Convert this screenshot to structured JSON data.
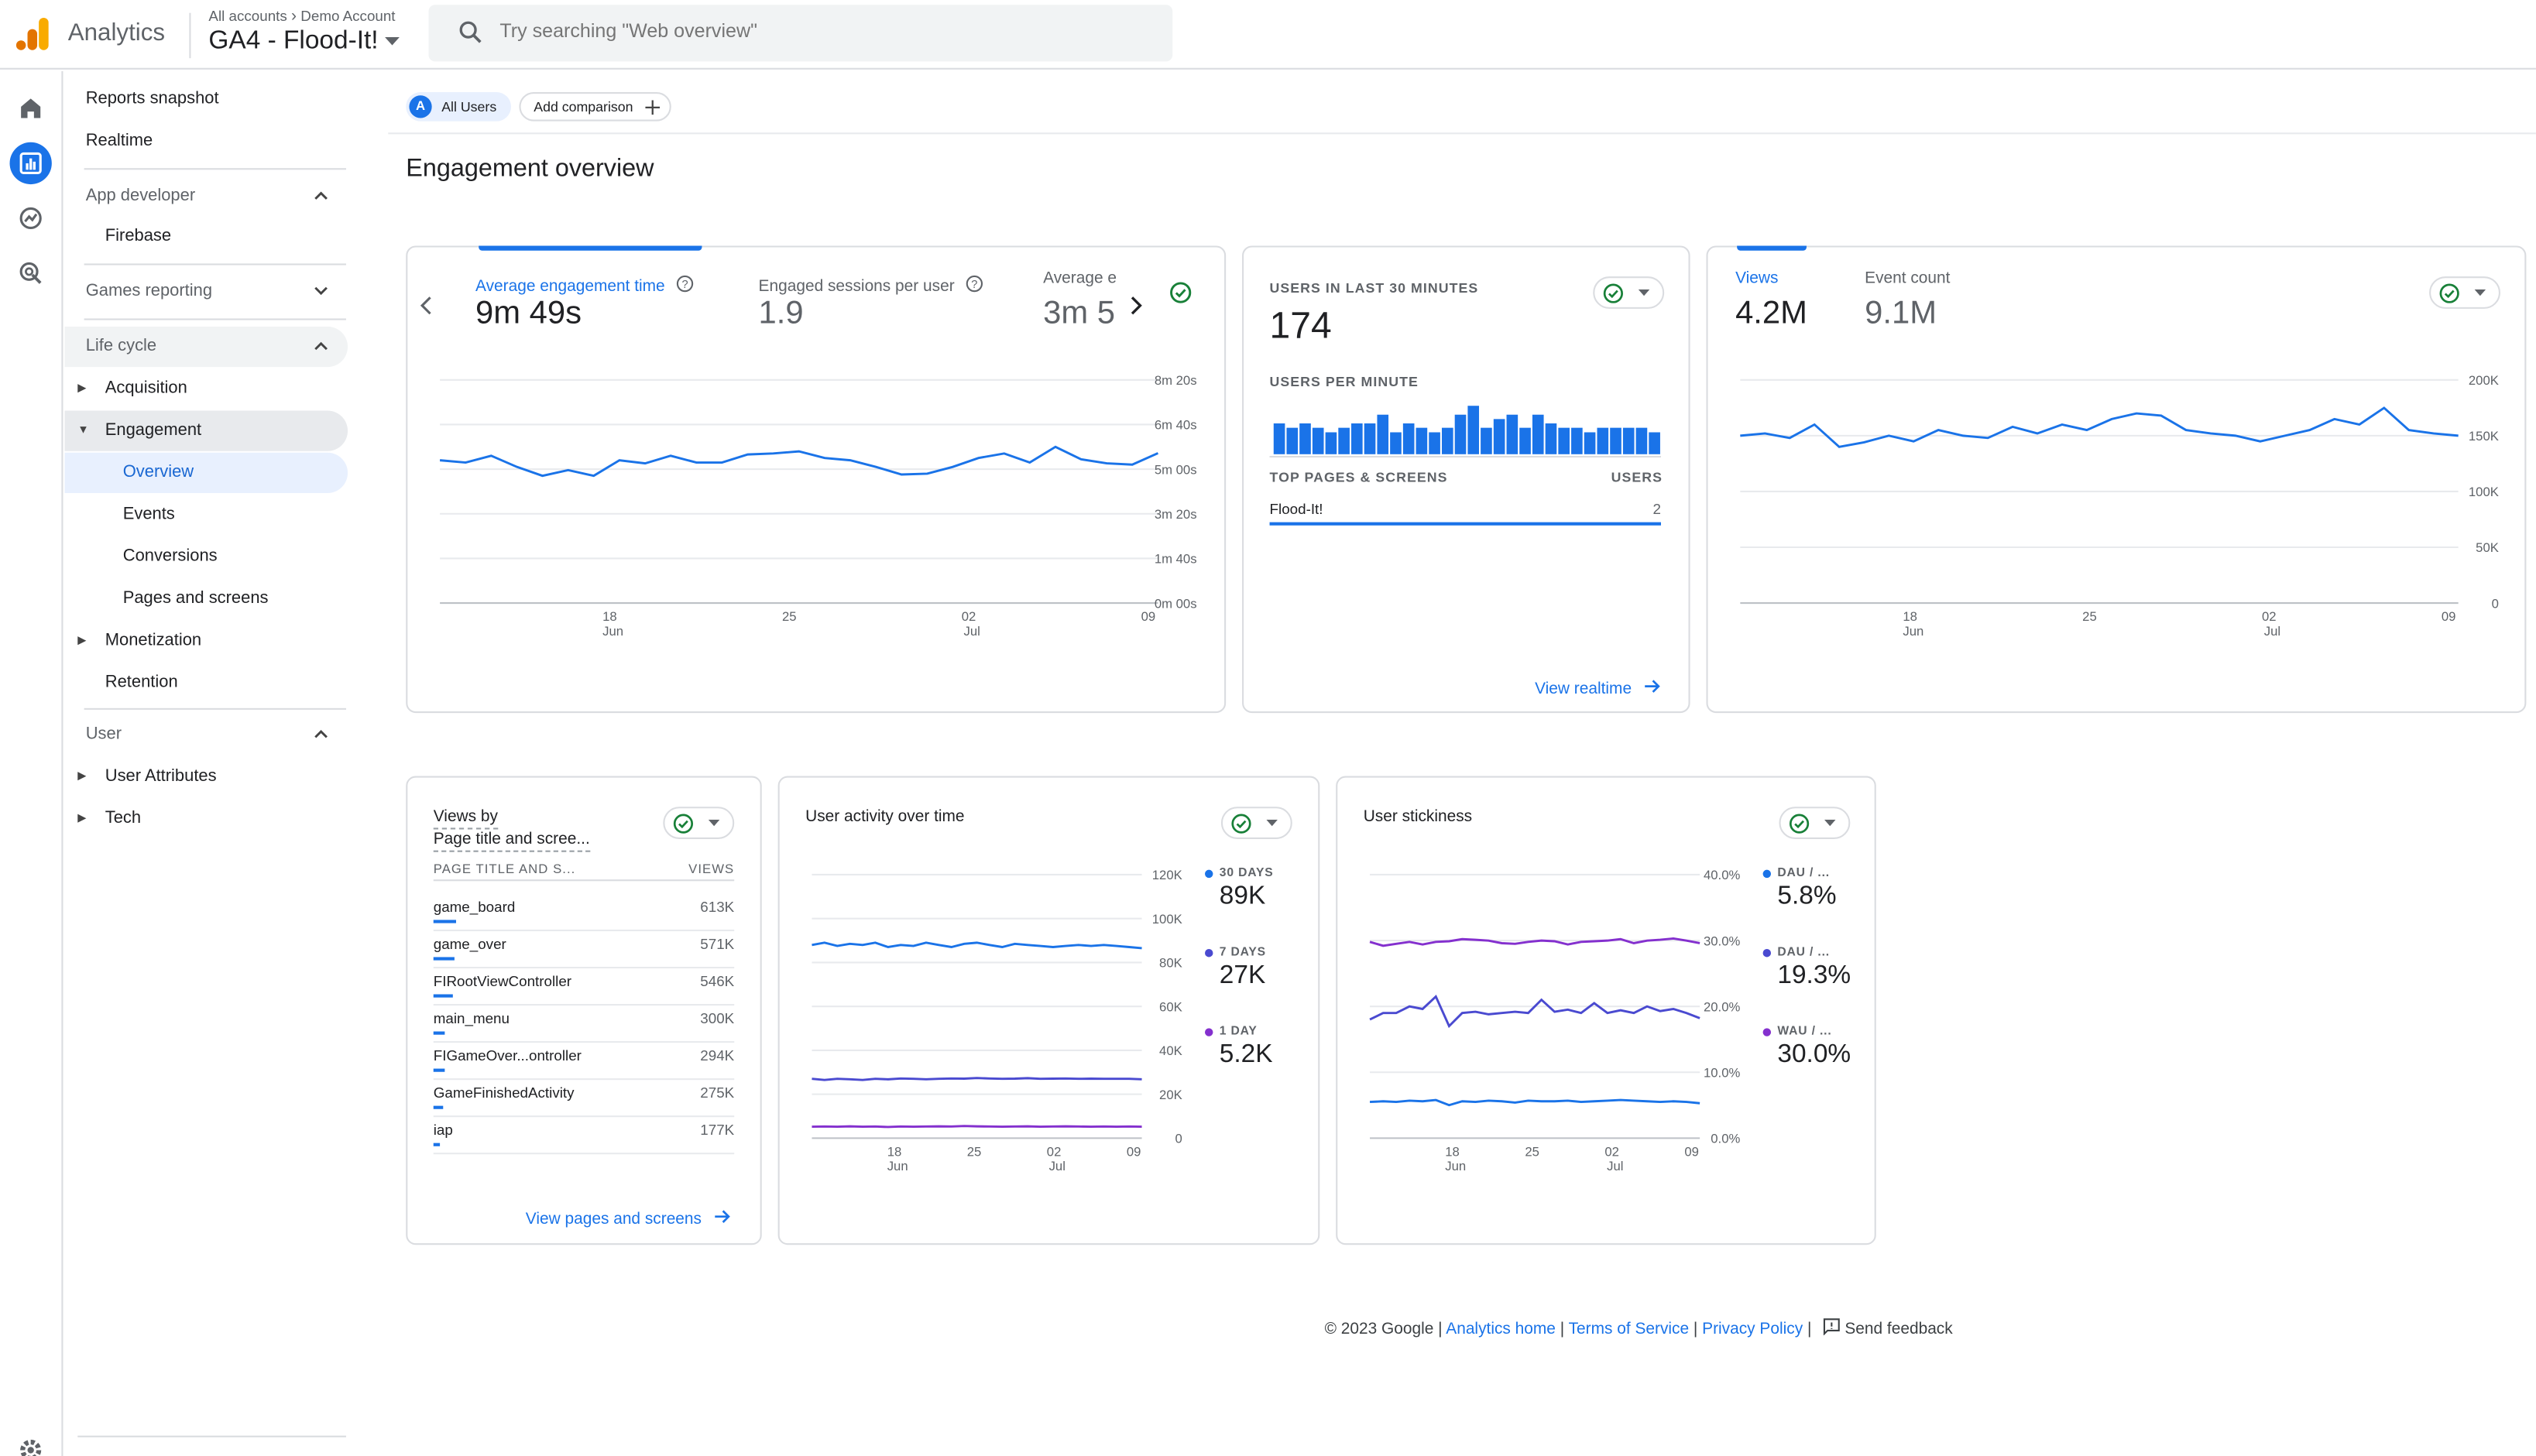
{
  "header": {
    "product_name": "Analytics",
    "breadcrumb_all_accounts": "All accounts",
    "breadcrumb_account": "Demo Account",
    "property_name": "GA4 - Flood-It!",
    "search_placeholder": "Try searching \"Web overview\""
  },
  "rail": {
    "icons": [
      "home-icon",
      "reports-icon",
      "explore-icon",
      "advertising-icon",
      "settings-icon"
    ],
    "active": "reports-icon",
    "accent": "#1a73e8"
  },
  "nav": {
    "reports_snapshot": "Reports snapshot",
    "realtime": "Realtime",
    "app_developer": "App developer",
    "firebase": "Firebase",
    "games_reporting": "Games reporting",
    "life_cycle": "Life cycle",
    "acquisition": "Acquisition",
    "engagement": "Engagement",
    "overview": "Overview",
    "events": "Events",
    "conversions": "Conversions",
    "pages_and_screens": "Pages and screens",
    "monetization": "Monetization",
    "retention": "Retention",
    "user": "User",
    "user_attributes": "User Attributes",
    "tech": "Tech"
  },
  "comparison": {
    "avatar_letter": "A",
    "all_users": "All Users",
    "add_comparison": "Add comparison"
  },
  "page_title": "Engagement overview",
  "card_engagement": {
    "metric1_label": "Average engagement time",
    "metric1_value": "9m 49s",
    "metric2_label": "Engaged sessions per user",
    "metric2_value": "1.9",
    "metric3_label": "Average e",
    "metric3_value": "3m 5"
  },
  "card_realtime": {
    "users_label": "USERS IN LAST 30 MINUTES",
    "users_value": "174",
    "per_minute_label": "USERS PER MINUTE",
    "top_pages_label": "TOP PAGES & SCREENS",
    "users_col": "USERS",
    "top_page_name": "Flood-It!",
    "top_page_users": "2",
    "view_realtime": "View realtime"
  },
  "card_views": {
    "views_label": "Views",
    "views_value": "4.2M",
    "events_label": "Event count",
    "events_value": "9.1M"
  },
  "card_pages": {
    "title_line1": "Views by",
    "title_line2": "Page title and scree...",
    "col1": "PAGE TITLE AND S...",
    "col2": "VIEWS",
    "rows": [
      {
        "name": "game_board",
        "value": "613K",
        "share": 1.0
      },
      {
        "name": "game_over",
        "value": "571K",
        "share": 0.93
      },
      {
        "name": "FIRootViewController",
        "value": "546K",
        "share": 0.89
      },
      {
        "name": "main_menu",
        "value": "300K",
        "share": 0.49
      },
      {
        "name": "FIGameOver...ontroller",
        "value": "294K",
        "share": 0.48
      },
      {
        "name": "GameFinishedActivity",
        "value": "275K",
        "share": 0.45
      },
      {
        "name": "iap",
        "value": "177K",
        "share": 0.29
      }
    ],
    "view_link": "View pages and screens"
  },
  "card_activity": {
    "title": "User activity over time",
    "legend": [
      {
        "label": "30 DAYS",
        "value": "89K",
        "color": "#1a73e8"
      },
      {
        "label": "7 DAYS",
        "value": "27K",
        "color": "#4a4ad0"
      },
      {
        "label": "1 DAY",
        "value": "5.2K",
        "color": "#8430ce"
      }
    ]
  },
  "card_stickiness": {
    "title": "User stickiness",
    "legend": [
      {
        "label": "DAU / ...",
        "value": "5.8%",
        "color": "#1a73e8"
      },
      {
        "label": "DAU / ...",
        "value": "19.3%",
        "color": "#4a4ad0"
      },
      {
        "label": "WAU / ...",
        "value": "30.0%",
        "color": "#8430ce"
      }
    ]
  },
  "chart_data": [
    {
      "type": "line",
      "name_ref": "engagement-chart",
      "x_ticks": [
        "18",
        "25",
        "02",
        "09"
      ],
      "x_tick_months": [
        "Jun",
        "",
        "Jul",
        ""
      ],
      "y_ticks": [
        "8m 20s",
        "6m 40s",
        "5m 00s",
        "3m 20s",
        "1m 40s",
        "0m 00s"
      ],
      "ylim": [
        0,
        500
      ],
      "series": [
        {
          "values": [
            320,
            315,
            330,
            305,
            285,
            298,
            285,
            320,
            313,
            330,
            315,
            315,
            333,
            335,
            340,
            325,
            320,
            305,
            288,
            290,
            305,
            325,
            335,
            315,
            350,
            322,
            313,
            310,
            336
          ]
        }
      ]
    },
    {
      "type": "bar",
      "name_ref": "users-per-minute-chart",
      "values": [
        7,
        6,
        7,
        6,
        5,
        6,
        7,
        7,
        9,
        5,
        7,
        6,
        5,
        6,
        9,
        11,
        6,
        8,
        9,
        6,
        9,
        7,
        6,
        6,
        5,
        6,
        6,
        6,
        6,
        5
      ]
    },
    {
      "type": "line",
      "name_ref": "views-chart",
      "x_ticks": [
        "18",
        "25",
        "02",
        "09"
      ],
      "x_tick_months": [
        "Jun",
        "",
        "Jul",
        ""
      ],
      "y_ticks": [
        "200K",
        "150K",
        "100K",
        "50K",
        "0"
      ],
      "ylim": [
        0,
        200000
      ],
      "series": [
        {
          "values": [
            150000,
            152000,
            148000,
            160000,
            140000,
            144000,
            150000,
            145000,
            155000,
            150000,
            148000,
            158000,
            152000,
            160000,
            155000,
            165000,
            170000,
            168000,
            155000,
            152000,
            150000,
            145000,
            150000,
            155000,
            165000,
            160000,
            175000,
            155000,
            152000,
            150000
          ]
        }
      ]
    },
    {
      "type": "line",
      "name_ref": "activity-chart",
      "x_ticks": [
        "18",
        "25",
        "02",
        "09"
      ],
      "x_tick_months": [
        "Jun",
        "",
        "Jul",
        ""
      ],
      "y_ticks": [
        "120K",
        "100K",
        "80K",
        "60K",
        "40K",
        "20K",
        "0"
      ],
      "ylim": [
        0,
        120000
      ],
      "series": [
        {
          "values": [
            88000,
            89000,
            87500,
            88500,
            88000,
            89000,
            87000,
            88000,
            87500,
            89000,
            88000,
            87000,
            88500,
            89000,
            88000,
            87000,
            88500,
            88000,
            87500,
            87000,
            87500,
            88000,
            87500,
            88000,
            87500,
            87000,
            86500
          ]
        },
        {
          "values": [
            27000,
            26500,
            27000,
            26800,
            26500,
            27000,
            26800,
            27200,
            27000,
            26800,
            27000,
            27200,
            27100,
            27400,
            27200,
            27000,
            27100,
            27300,
            27000,
            27100,
            27200,
            27000,
            27100,
            27000,
            27000,
            27000,
            26800
          ]
        },
        {
          "values": [
            5200,
            5300,
            5200,
            5400,
            5200,
            5300,
            5100,
            5300,
            5200,
            5300,
            5400,
            5300,
            5500,
            5400,
            5300,
            5200,
            5300,
            5400,
            5200,
            5300,
            5400,
            5300,
            5200,
            5300,
            5200,
            5300,
            5200
          ]
        }
      ]
    },
    {
      "type": "line",
      "name_ref": "stickiness-chart",
      "x_ticks": [
        "18",
        "25",
        "02",
        "09"
      ],
      "x_tick_months": [
        "Jun",
        "",
        "Jul",
        ""
      ],
      "y_ticks": [
        "40.0%",
        "30.0%",
        "20.0%",
        "10.0%",
        "0.0%"
      ],
      "ylim": [
        0,
        40
      ],
      "series": [
        {
          "values": [
            5.5,
            5.6,
            5.5,
            5.7,
            5.6,
            5.8,
            5.0,
            5.6,
            5.5,
            5.7,
            5.6,
            5.4,
            5.7,
            5.6,
            5.6,
            5.7,
            5.5,
            5.6,
            5.7,
            5.8,
            5.7,
            5.6,
            5.5,
            5.6,
            5.5,
            5.3
          ]
        },
        {
          "values": [
            18.0,
            19.0,
            19.0,
            20.0,
            19.6,
            21.5,
            17.0,
            19.0,
            19.2,
            18.8,
            19.0,
            19.2,
            19.0,
            21.0,
            19.2,
            19.5,
            19.0,
            20.5,
            19.0,
            19.4,
            19.0,
            20.0,
            19.3,
            19.6,
            19.0,
            18.2
          ]
        },
        {
          "values": [
            29.8,
            29.2,
            29.5,
            29.8,
            29.4,
            29.8,
            29.9,
            30.2,
            30.1,
            30.0,
            29.6,
            29.5,
            29.8,
            30.0,
            29.9,
            29.4,
            29.8,
            29.9,
            30.0,
            30.2,
            29.6,
            30.0,
            30.1,
            30.3,
            30.0,
            29.6
          ]
        }
      ]
    }
  ],
  "footer": {
    "copyright": "© 2023 Google",
    "analytics_home": "Analytics home",
    "terms": "Terms of Service",
    "privacy": "Privacy Policy",
    "feedback": "Send feedback"
  }
}
